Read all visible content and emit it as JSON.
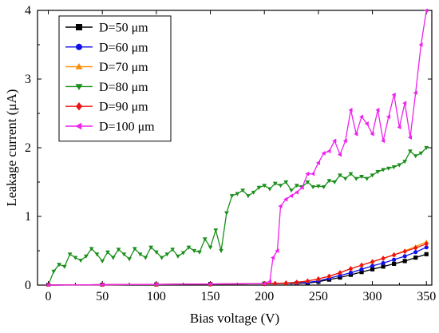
{
  "chart_data": {
    "type": "line",
    "title": "",
    "xlabel": "Bias voltage (V)",
    "ylabel": "Leakage current (μA)",
    "xlim": [
      -10,
      355
    ],
    "ylim": [
      0,
      4
    ],
    "xticks": [
      0,
      50,
      100,
      150,
      200,
      250,
      300,
      350
    ],
    "yticks": [
      0,
      1,
      2,
      3,
      4
    ],
    "grid": false,
    "legend_position": "top-left",
    "series": [
      {
        "name": "D=50 μm",
        "color": "#000000",
        "marker": "square",
        "x": [
          0,
          50,
          100,
          150,
          200,
          230,
          240,
          250,
          260,
          270,
          280,
          290,
          300,
          310,
          320,
          330,
          340,
          350
        ],
        "y": [
          0.0,
          0.005,
          0.01,
          0.015,
          0.02,
          0.025,
          0.03,
          0.05,
          0.08,
          0.11,
          0.15,
          0.19,
          0.23,
          0.27,
          0.31,
          0.35,
          0.4,
          0.45
        ]
      },
      {
        "name": "D=60 μm",
        "color": "#1010e8",
        "marker": "circle",
        "x": [
          0,
          50,
          100,
          150,
          200,
          230,
          240,
          250,
          260,
          270,
          280,
          290,
          300,
          310,
          320,
          330,
          340,
          350
        ],
        "y": [
          0.0,
          0.005,
          0.01,
          0.015,
          0.02,
          0.03,
          0.04,
          0.06,
          0.1,
          0.14,
          0.18,
          0.23,
          0.28,
          0.32,
          0.37,
          0.42,
          0.48,
          0.55
        ]
      },
      {
        "name": "D=70 μm",
        "color": "#ff8c00",
        "marker": "triangle-up",
        "x": [
          0,
          50,
          100,
          150,
          200,
          220,
          230,
          240,
          250,
          260,
          270,
          280,
          290,
          300,
          310,
          320,
          330,
          340,
          350
        ],
        "y": [
          0.0,
          0.005,
          0.01,
          0.015,
          0.02,
          0.03,
          0.04,
          0.06,
          0.09,
          0.13,
          0.18,
          0.24,
          0.29,
          0.34,
          0.39,
          0.44,
          0.5,
          0.56,
          0.63
        ]
      },
      {
        "name": "D=80 μm",
        "color": "#1a8f1a",
        "marker": "triangle-down",
        "x": [
          0,
          5,
          10,
          15,
          20,
          25,
          30,
          35,
          40,
          45,
          50,
          55,
          60,
          65,
          70,
          75,
          80,
          85,
          90,
          95,
          100,
          105,
          110,
          115,
          120,
          125,
          130,
          135,
          140,
          145,
          150,
          155,
          160,
          165,
          170,
          175,
          180,
          185,
          190,
          195,
          200,
          205,
          210,
          215,
          220,
          225,
          230,
          235,
          240,
          245,
          250,
          255,
          260,
          265,
          270,
          275,
          280,
          285,
          290,
          295,
          300,
          305,
          310,
          315,
          320,
          325,
          330,
          335,
          340,
          345,
          350
        ],
        "y": [
          0.0,
          0.2,
          0.3,
          0.27,
          0.45,
          0.4,
          0.36,
          0.42,
          0.53,
          0.45,
          0.35,
          0.48,
          0.4,
          0.52,
          0.45,
          0.38,
          0.53,
          0.45,
          0.4,
          0.55,
          0.48,
          0.4,
          0.45,
          0.52,
          0.42,
          0.47,
          0.55,
          0.5,
          0.48,
          0.67,
          0.55,
          0.8,
          0.5,
          1.05,
          1.3,
          1.33,
          1.38,
          1.3,
          1.35,
          1.42,
          1.45,
          1.4,
          1.48,
          1.45,
          1.5,
          1.38,
          1.45,
          1.43,
          1.5,
          1.43,
          1.44,
          1.43,
          1.52,
          1.5,
          1.6,
          1.55,
          1.62,
          1.55,
          1.58,
          1.55,
          1.6,
          1.65,
          1.68,
          1.7,
          1.72,
          1.75,
          1.8,
          1.95,
          1.88,
          1.92,
          2.0
        ]
      },
      {
        "name": "D=90 μm",
        "color": "#ee1111",
        "marker": "diamond",
        "x": [
          0,
          50,
          100,
          150,
          200,
          210,
          220,
          230,
          240,
          250,
          260,
          270,
          280,
          290,
          300,
          310,
          320,
          330,
          340,
          350
        ],
        "y": [
          0.0,
          0.005,
          0.01,
          0.015,
          0.02,
          0.025,
          0.03,
          0.04,
          0.06,
          0.09,
          0.13,
          0.18,
          0.24,
          0.29,
          0.34,
          0.39,
          0.44,
          0.49,
          0.54,
          0.6
        ]
      },
      {
        "name": "D=100 μm",
        "color": "#ee22ee",
        "marker": "triangle-left",
        "x": [
          0,
          50,
          100,
          150,
          200,
          205,
          208,
          212,
          215,
          220,
          225,
          230,
          235,
          240,
          245,
          250,
          255,
          260,
          265,
          270,
          275,
          280,
          285,
          290,
          295,
          300,
          305,
          310,
          315,
          320,
          325,
          330,
          335,
          340,
          345,
          350
        ],
        "y": [
          0.0,
          0.005,
          0.01,
          0.015,
          0.02,
          0.05,
          0.4,
          0.5,
          1.15,
          1.25,
          1.3,
          1.35,
          1.42,
          1.62,
          1.62,
          1.78,
          1.92,
          1.95,
          2.1,
          1.9,
          2.1,
          2.55,
          2.2,
          2.45,
          2.35,
          2.2,
          2.55,
          2.1,
          2.45,
          2.77,
          2.3,
          2.65,
          2.15,
          2.8,
          3.5,
          4.0
        ]
      }
    ]
  }
}
